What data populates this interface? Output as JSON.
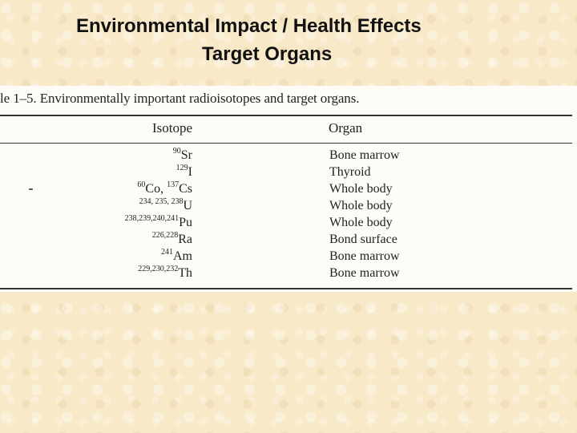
{
  "slide": {
    "title_line1": "Environmental Impact / Health Effects",
    "title_line2": "Target Organs"
  },
  "table": {
    "caption": "le 1–5. Environmentally important radioisotopes and target organs.",
    "header_isotope": "Isotope",
    "header_organ": "Organ",
    "rows": [
      {
        "isotope": [
          {
            "mass": "90",
            "symbol": "Sr"
          }
        ],
        "organ": "Bone marrow"
      },
      {
        "isotope": [
          {
            "mass": "129",
            "symbol": "I"
          }
        ],
        "organ": "Thyroid"
      },
      {
        "isotope": [
          {
            "mass": "60",
            "symbol": "Co, "
          },
          {
            "mass": "137",
            "symbol": "Cs"
          }
        ],
        "organ": "Whole body"
      },
      {
        "isotope": [
          {
            "mass": "234, 235, 238",
            "symbol": "U"
          }
        ],
        "organ": "Whole body"
      },
      {
        "isotope": [
          {
            "mass": "238,239,240,241",
            "symbol": "Pu"
          }
        ],
        "organ": "Whole body"
      },
      {
        "isotope": [
          {
            "mass": "226,228",
            "symbol": "Ra"
          }
        ],
        "organ": "Bond surface"
      },
      {
        "isotope": [
          {
            "mass": "241",
            "symbol": "Am"
          }
        ],
        "organ": "Bone marrow"
      },
      {
        "isotope": [
          {
            "mass": "229,230,232",
            "symbol": "Th"
          }
        ],
        "organ": "Bone marrow"
      }
    ]
  }
}
